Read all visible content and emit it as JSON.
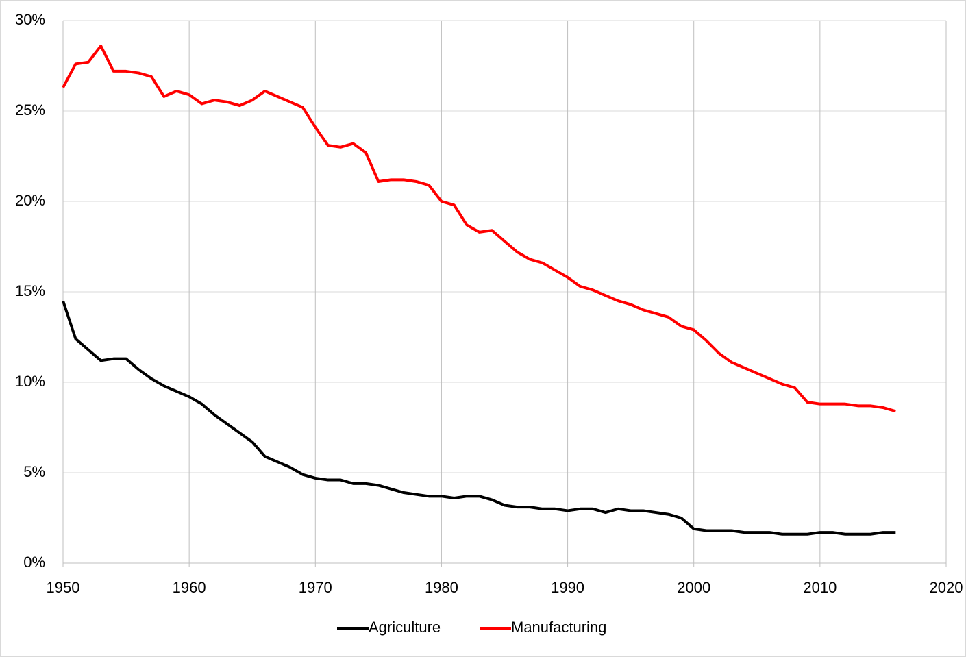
{
  "chart_data": {
    "type": "line",
    "x": [
      1950,
      1951,
      1952,
      1953,
      1954,
      1955,
      1956,
      1957,
      1958,
      1959,
      1960,
      1961,
      1962,
      1963,
      1964,
      1965,
      1966,
      1967,
      1968,
      1969,
      1970,
      1971,
      1972,
      1973,
      1974,
      1975,
      1976,
      1977,
      1978,
      1979,
      1980,
      1981,
      1982,
      1983,
      1984,
      1985,
      1986,
      1987,
      1988,
      1989,
      1990,
      1991,
      1992,
      1993,
      1994,
      1995,
      1996,
      1997,
      1998,
      1999,
      2000,
      2001,
      2002,
      2003,
      2004,
      2005,
      2006,
      2007,
      2008,
      2009,
      2010,
      2011,
      2012,
      2013,
      2014,
      2015,
      2016
    ],
    "series": [
      {
        "name": "Agriculture",
        "color": "#000000",
        "values": [
          14.5,
          12.4,
          11.8,
          11.2,
          11.3,
          11.3,
          10.7,
          10.2,
          9.8,
          9.5,
          9.2,
          8.8,
          8.2,
          7.7,
          7.2,
          6.7,
          5.9,
          5.6,
          5.3,
          4.9,
          4.7,
          4.6,
          4.6,
          4.4,
          4.4,
          4.3,
          4.1,
          3.9,
          3.8,
          3.7,
          3.7,
          3.6,
          3.7,
          3.7,
          3.5,
          3.2,
          3.1,
          3.1,
          3.0,
          3.0,
          2.9,
          3.0,
          3.0,
          2.8,
          3.0,
          2.9,
          2.9,
          2.8,
          2.7,
          2.5,
          1.9,
          1.8,
          1.8,
          1.8,
          1.7,
          1.7,
          1.7,
          1.6,
          1.6,
          1.6,
          1.7,
          1.7,
          1.6,
          1.6,
          1.6,
          1.7,
          1.7
        ]
      },
      {
        "name": "Manufacturing",
        "color": "#ff0000",
        "values": [
          26.3,
          27.6,
          27.7,
          28.6,
          27.2,
          27.2,
          27.1,
          26.9,
          25.8,
          26.1,
          25.9,
          25.4,
          25.6,
          25.5,
          25.3,
          25.6,
          26.1,
          25.8,
          25.5,
          25.2,
          24.1,
          23.1,
          23.0,
          23.2,
          22.7,
          21.1,
          21.2,
          21.2,
          21.1,
          20.9,
          20.0,
          19.8,
          18.7,
          18.3,
          18.4,
          17.8,
          17.2,
          16.8,
          16.6,
          16.2,
          15.8,
          15.3,
          15.1,
          14.8,
          14.5,
          14.3,
          14.0,
          13.8,
          13.6,
          13.1,
          12.9,
          12.3,
          11.6,
          11.1,
          10.8,
          10.5,
          10.2,
          9.9,
          9.7,
          8.9,
          8.8,
          8.8,
          8.8,
          8.7,
          8.7,
          8.6,
          8.4
        ]
      }
    ],
    "xlim": [
      1950,
      2020
    ],
    "xticks": [
      1950,
      1960,
      1970,
      1980,
      1990,
      2000,
      2010,
      2020
    ],
    "ylim": [
      0,
      30
    ],
    "yticks": [
      {
        "value": 0,
        "label": "0%"
      },
      {
        "value": 5,
        "label": "5%"
      },
      {
        "value": 10,
        "label": "10%"
      },
      {
        "value": 15,
        "label": "15%"
      },
      {
        "value": 20,
        "label": "20%"
      },
      {
        "value": 25,
        "label": "25%"
      },
      {
        "value": 30,
        "label": "30%"
      }
    ],
    "grid": true,
    "legend": "bottom"
  }
}
